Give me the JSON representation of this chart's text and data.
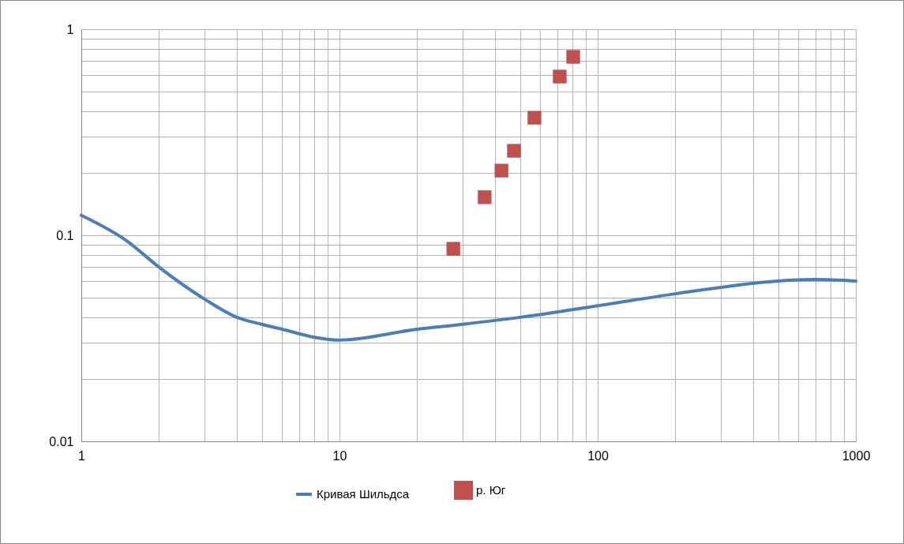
{
  "chart_data": {
    "type": "line",
    "log": "xy",
    "grid": true,
    "legend": "bottom",
    "xlim": [
      1,
      1000
    ],
    "ylim": [
      0.01,
      1
    ],
    "xticks": [
      1,
      {
        "value": 2,
        "label": null
      },
      {
        "value": 3,
        "label": null
      },
      {
        "value": 4,
        "label": null
      },
      {
        "value": 5,
        "label": null
      },
      {
        "value": 6,
        "label": null
      },
      {
        "value": 7,
        "label": null
      },
      {
        "value": 8,
        "label": null
      },
      {
        "value": 9,
        "label": null
      },
      10,
      {
        "value": 20,
        "label": null
      },
      {
        "value": 30,
        "label": null
      },
      {
        "value": 40,
        "label": null
      },
      {
        "value": 50,
        "label": null
      },
      {
        "value": 60,
        "label": null
      },
      {
        "value": 70,
        "label": null
      },
      {
        "value": 80,
        "label": null
      },
      {
        "value": 90,
        "label": null
      },
      100,
      {
        "value": 200,
        "label": null
      },
      {
        "value": 300,
        "label": null
      },
      {
        "value": 400,
        "label": null
      },
      {
        "value": 500,
        "label": null
      },
      {
        "value": 600,
        "label": null
      },
      {
        "value": 700,
        "label": null
      },
      {
        "value": 800,
        "label": null
      },
      {
        "value": 900,
        "label": null
      },
      1000
    ],
    "yticks": [
      0.01,
      {
        "value": 0.02,
        "label": null
      },
      {
        "value": 0.03,
        "label": null
      },
      {
        "value": 0.04,
        "label": null
      },
      {
        "value": 0.05,
        "label": null
      },
      {
        "value": 0.06,
        "label": null
      },
      {
        "value": 0.07,
        "label": null
      },
      {
        "value": 0.08,
        "label": null
      },
      {
        "value": 0.09,
        "label": null
      },
      0.1,
      {
        "value": 0.2,
        "label": null
      },
      {
        "value": 0.3,
        "label": null
      },
      {
        "value": 0.4,
        "label": null
      },
      {
        "value": 0.5,
        "label": null
      },
      {
        "value": 0.6,
        "label": null
      },
      {
        "value": 0.7,
        "label": null
      },
      {
        "value": 0.8,
        "label": null
      },
      {
        "value": 0.9,
        "label": null
      },
      1
    ],
    "series": [
      {
        "name": "Кривая Шильдса",
        "color": "#4a7ebb",
        "marker": "none",
        "line_style": "solid",
        "x": [
          1,
          1.5,
          2,
          3,
          4,
          5,
          6,
          8,
          10,
          20,
          30,
          50,
          100,
          200,
          500,
          700,
          1000
        ],
        "values": [
          0.125,
          0.094,
          0.07,
          0.049,
          0.04,
          0.037,
          0.035,
          0.032,
          0.031,
          0.035,
          0.037,
          0.04,
          0.0455,
          0.052,
          0.06,
          0.061,
          0.06
        ]
      },
      {
        "name": "р. Юг",
        "type": "scatter",
        "color": "#c0504d",
        "marker": "square",
        "x": [
          27.6,
          36.5,
          42.4,
          47.4,
          56.9,
          71.3,
          80.4
        ],
        "values": [
          0.086,
          0.153,
          0.206,
          0.257,
          0.372,
          0.589,
          0.734
        ]
      }
    ]
  }
}
